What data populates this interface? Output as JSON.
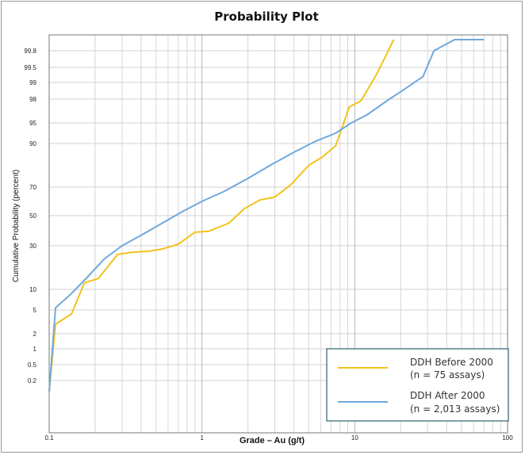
{
  "chart_data": {
    "type": "line",
    "title": "Probability Plot",
    "xlabel": "Grade – Au (g/t)",
    "ylabel": "Cumulative Probability (percent)",
    "x_scale": "log",
    "y_scale": "probability",
    "xlim": [
      0.1,
      100
    ],
    "x_ticks": [
      0.1,
      1,
      10,
      100
    ],
    "x_tick_labels": [
      "0.1",
      "1",
      "10",
      "100"
    ],
    "y_ticks": [
      0.2,
      0.5,
      1,
      2,
      5,
      10,
      30,
      50,
      70,
      90,
      95,
      98,
      99,
      99.5,
      99.8
    ],
    "y_tick_labels": [
      "0.2",
      "0.5",
      "1",
      "2",
      "5",
      "10",
      "30",
      "50",
      "70",
      "90",
      "95",
      "98",
      "99",
      "99.5",
      "99.8"
    ],
    "grid": true,
    "legend_position": "bottom-right",
    "series": [
      {
        "name": "DDH Before 2000",
        "name_line2": "(n = 75 assays)",
        "color": "#f2c21b",
        "points": [
          [
            0.1,
            0.1
          ],
          [
            0.11,
            3.2
          ],
          [
            0.14,
            4.5
          ],
          [
            0.17,
            13
          ],
          [
            0.21,
            15
          ],
          [
            0.28,
            26
          ],
          [
            0.35,
            27
          ],
          [
            0.45,
            27.5
          ],
          [
            0.55,
            28.5
          ],
          [
            0.7,
            31
          ],
          [
            0.9,
            39
          ],
          [
            1.1,
            39.5
          ],
          [
            1.5,
            45
          ],
          [
            1.9,
            55
          ],
          [
            2.4,
            61
          ],
          [
            3.0,
            63
          ],
          [
            3.8,
            71
          ],
          [
            5.0,
            80
          ],
          [
            6.2,
            84
          ],
          [
            7.5,
            89
          ],
          [
            9.2,
            97
          ],
          [
            11,
            97.8
          ],
          [
            14,
            99.3
          ],
          [
            18,
            99.95
          ]
        ]
      },
      {
        "name": "DDH After 2000",
        "name_line2": "(n = 2,013 assays)",
        "color": "#6fa8dc",
        "points": [
          [
            0.1,
            0.1
          ],
          [
            0.11,
            5.5
          ],
          [
            0.14,
            9
          ],
          [
            0.18,
            16
          ],
          [
            0.23,
            24
          ],
          [
            0.3,
            30
          ],
          [
            0.4,
            37
          ],
          [
            0.55,
            45
          ],
          [
            0.75,
            53
          ],
          [
            1.0,
            60
          ],
          [
            1.4,
            67
          ],
          [
            2.0,
            74
          ],
          [
            2.8,
            80
          ],
          [
            4.0,
            86
          ],
          [
            5.5,
            90.5
          ],
          [
            7.5,
            92.5
          ],
          [
            9.5,
            95
          ],
          [
            12,
            96
          ],
          [
            16,
            97.7
          ],
          [
            22,
            98.7
          ],
          [
            28,
            99.2
          ],
          [
            33,
            99.8
          ],
          [
            45,
            99.95
          ],
          [
            70,
            99.95
          ]
        ]
      }
    ]
  }
}
